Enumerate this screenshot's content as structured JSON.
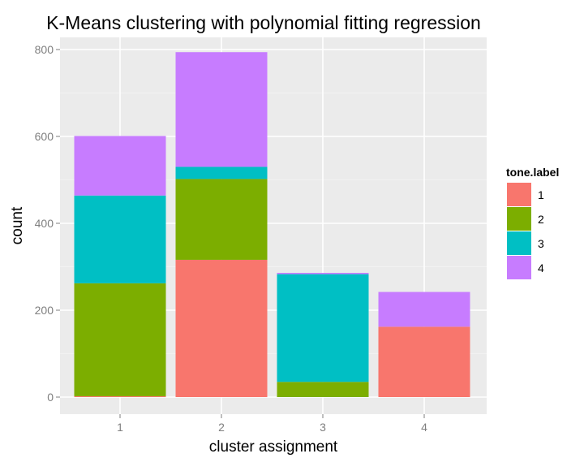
{
  "chart_data": {
    "type": "bar",
    "stacked": true,
    "title": "K-Means clustering with polynomial fitting regression",
    "xlabel": "cluster assignment",
    "ylabel": "count",
    "categories": [
      "1",
      "2",
      "3",
      "4"
    ],
    "ylim": [
      0,
      800
    ],
    "yticks": [
      0,
      200,
      400,
      600,
      800
    ],
    "grid": true,
    "legend": {
      "title": "tone.label",
      "position": "right"
    },
    "series": [
      {
        "name": "1",
        "color": "#F8766D",
        "values": [
          2,
          316,
          0,
          162
        ]
      },
      {
        "name": "2",
        "color": "#7CAE00",
        "values": [
          260,
          186,
          35,
          0
        ]
      },
      {
        "name": "3",
        "color": "#00BFC4",
        "values": [
          202,
          28,
          248,
          0
        ]
      },
      {
        "name": "4",
        "color": "#C77CFF",
        "values": [
          137,
          264,
          3,
          80
        ]
      }
    ]
  }
}
